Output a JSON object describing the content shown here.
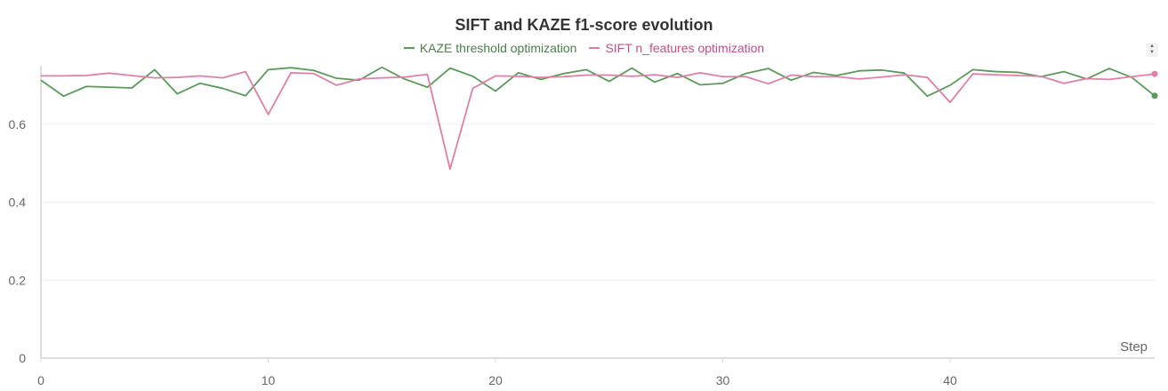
{
  "chart_data": {
    "type": "line",
    "title": "SIFT and KAZE f1-score evolution",
    "xlabel": "Step",
    "ylabel": "",
    "xlim": [
      0,
      49
    ],
    "ylim": [
      0,
      0.75
    ],
    "xticks": [
      0,
      10,
      20,
      30,
      40
    ],
    "yticks": [
      0,
      0.2,
      0.4,
      0.6
    ],
    "grid": "horizontal",
    "legend_position": "top-center",
    "x": [
      0,
      1,
      2,
      3,
      4,
      5,
      6,
      7,
      8,
      9,
      10,
      11,
      12,
      13,
      14,
      15,
      16,
      17,
      18,
      19,
      20,
      21,
      22,
      23,
      24,
      25,
      26,
      27,
      28,
      29,
      30,
      31,
      32,
      33,
      34,
      35,
      36,
      37,
      38,
      39,
      40,
      41,
      42,
      43,
      44,
      45,
      46,
      47,
      48,
      49
    ],
    "series": [
      {
        "name": "KAZE threshold optimization",
        "color": "#5a9a5a",
        "values": [
          0.713,
          0.672,
          0.697,
          0.695,
          0.693,
          0.74,
          0.678,
          0.705,
          0.692,
          0.673,
          0.74,
          0.745,
          0.738,
          0.718,
          0.713,
          0.746,
          0.716,
          0.695,
          0.744,
          0.723,
          0.685,
          0.732,
          0.715,
          0.73,
          0.74,
          0.71,
          0.744,
          0.708,
          0.73,
          0.701,
          0.705,
          0.73,
          0.743,
          0.713,
          0.733,
          0.725,
          0.737,
          0.739,
          0.731,
          0.672,
          0.7,
          0.74,
          0.735,
          0.733,
          0.722,
          0.735,
          0.716,
          0.743,
          0.72,
          0.673
        ]
      },
      {
        "name": "SIFT n_features optimization",
        "color": "#e07fa6",
        "values": [
          0.724,
          0.724,
          0.725,
          0.731,
          0.725,
          0.719,
          0.72,
          0.724,
          0.719,
          0.735,
          0.625,
          0.732,
          0.73,
          0.7,
          0.716,
          0.719,
          0.721,
          0.728,
          0.485,
          0.692,
          0.724,
          0.723,
          0.72,
          0.722,
          0.726,
          0.726,
          0.723,
          0.727,
          0.72,
          0.732,
          0.722,
          0.722,
          0.704,
          0.726,
          0.722,
          0.722,
          0.716,
          0.721,
          0.727,
          0.72,
          0.656,
          0.729,
          0.727,
          0.725,
          0.723,
          0.705,
          0.717,
          0.715,
          0.722,
          0.729
        ]
      }
    ]
  },
  "ui": {
    "scroll_icon": "up-down-arrows-icon"
  }
}
